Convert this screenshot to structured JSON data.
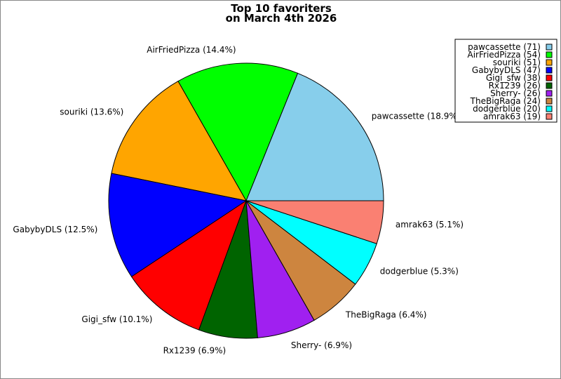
{
  "chart_data": {
    "type": "pie",
    "title": [
      "Top 10 favoriters",
      "on March 4th 2026"
    ],
    "legend_placement": "top-right",
    "slices": [
      {
        "name": "pawcassette",
        "value": 71,
        "pct": "18.9%",
        "color": "#87ceeb"
      },
      {
        "name": "AirFriedPizza",
        "value": 54,
        "pct": "14.4%",
        "color": "#00ff00"
      },
      {
        "name": "souriki",
        "value": 51,
        "pct": "13.6%",
        "color": "#ffa500"
      },
      {
        "name": "GabybyDLS",
        "value": 47,
        "pct": "12.5%",
        "color": "#0000ff"
      },
      {
        "name": "Gigi_sfw",
        "value": 38,
        "pct": "10.1%",
        "color": "#ff0000"
      },
      {
        "name": "Rx1239",
        "value": 26,
        "pct": "6.9%",
        "color": "#006400"
      },
      {
        "name": "Sherry-",
        "value": 26,
        "pct": "6.9%",
        "color": "#a020f0"
      },
      {
        "name": "TheBigRaga",
        "value": 24,
        "pct": "6.4%",
        "color": "#cd853f"
      },
      {
        "name": "dodgerblue",
        "value": 20,
        "pct": "5.3%",
        "color": "#00ffff"
      },
      {
        "name": "amrak63",
        "value": 19,
        "pct": "5.1%",
        "color": "#fa8072"
      }
    ]
  }
}
